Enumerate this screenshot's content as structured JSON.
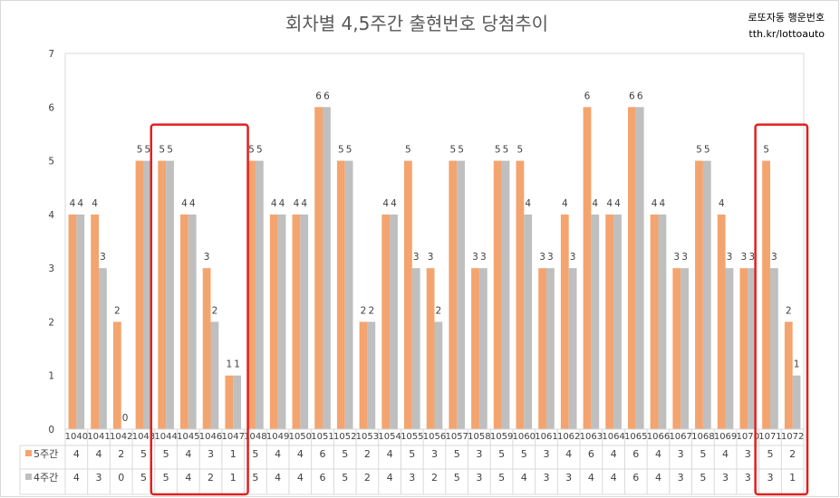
{
  "chart_data": {
    "type": "bar",
    "title": "회차별 4,5주간 출현번호 당첨추이",
    "watermark_line1": "로또자동 행운번호",
    "watermark_line2": "tth.kr/lottoauto",
    "xlabel": "",
    "ylabel": "",
    "ylim": [
      0,
      7
    ],
    "yticks": [
      0,
      1,
      2,
      3,
      4,
      5,
      6,
      7
    ],
    "grid": false,
    "legend": "data-table",
    "categories": [
      "1040",
      "1041",
      "1042",
      "1043",
      "1044",
      "1045",
      "1046",
      "1047",
      "1048",
      "1049",
      "1050",
      "1051",
      "1052",
      "1053",
      "1054",
      "1055",
      "1056",
      "1057",
      "1058",
      "1059",
      "1060",
      "1061",
      "1062",
      "1063",
      "1064",
      "1065",
      "1066",
      "1067",
      "1068",
      "1069",
      "1070",
      "1071",
      "1072"
    ],
    "series": [
      {
        "name": "5주간",
        "color": "#F4A46E",
        "values": [
          4,
          4,
          2,
          5,
          5,
          4,
          3,
          1,
          5,
          4,
          4,
          6,
          5,
          2,
          4,
          5,
          3,
          5,
          3,
          5,
          5,
          3,
          4,
          6,
          4,
          6,
          4,
          3,
          5,
          4,
          3,
          5,
          2
        ]
      },
      {
        "name": "4주간",
        "color": "#BFBFBF",
        "values": [
          4,
          3,
          0,
          5,
          5,
          4,
          2,
          1,
          5,
          4,
          4,
          6,
          5,
          2,
          4,
          3,
          2,
          5,
          3,
          5,
          4,
          3,
          3,
          4,
          4,
          6,
          4,
          3,
          5,
          3,
          3,
          3,
          1
        ]
      }
    ],
    "highlight_groups": [
      {
        "from": "1044",
        "to": "1047",
        "color": "#E02020"
      },
      {
        "from": "1071",
        "to": "1072",
        "color": "#E02020"
      }
    ]
  }
}
